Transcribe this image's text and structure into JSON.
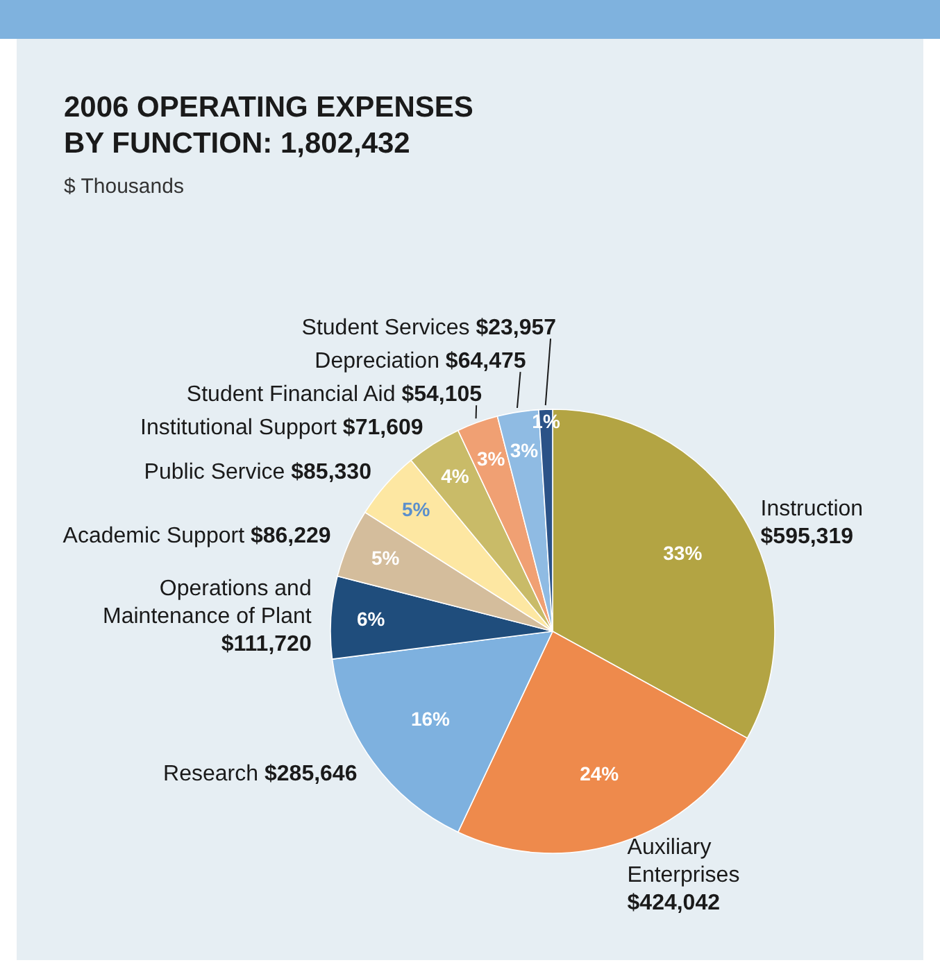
{
  "chart_data": {
    "type": "pie",
    "title": "2006 OPERATING EXPENSES BY FUNCTION: 1,802,432",
    "subtitle": "$ Thousands",
    "categories": [
      "Instruction $595,319",
      "Auxiliary Enterprises $424,042",
      "Research $285,646",
      "Operations and Maintenance of Plant $111,720",
      "Academic Support $86,229",
      "Public Service $85,330",
      "Institutional Support $71,609",
      "Student Financial Aid $54,105",
      "Depreciation $64,475",
      "Student Services $23,957"
    ],
    "values": [
      33,
      24,
      16,
      6,
      5,
      5,
      4,
      3,
      3,
      1
    ],
    "colors": [
      "#b3a443",
      "#ee8a4c",
      "#7eb1df",
      "#1f4d7c",
      "#d4bd9c",
      "#fde7a2",
      "#c9bb68",
      "#f0a073",
      "#8fbbe3",
      "#2b5287"
    ],
    "value_labels": [
      "33%",
      "24%",
      "16%",
      "6%",
      "5%",
      "5%",
      "4%",
      "3%",
      "3%",
      "1%"
    ]
  }
}
